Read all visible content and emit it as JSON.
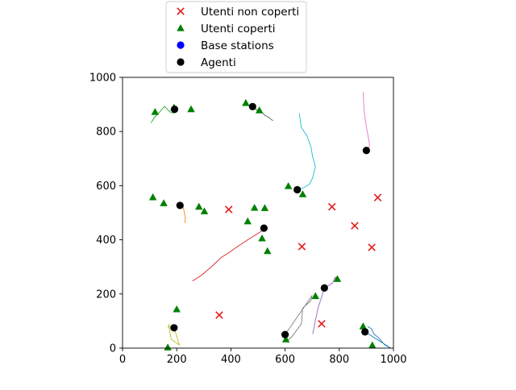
{
  "chart_data": {
    "type": "scatter",
    "xlim": [
      0,
      1000
    ],
    "ylim": [
      0,
      1000
    ],
    "x_ticks": [
      0,
      200,
      400,
      600,
      800,
      1000
    ],
    "y_ticks": [
      0,
      200,
      400,
      600,
      800,
      1000
    ],
    "legend_position": "top-center (above the axes)",
    "legend": [
      {
        "label": "Utenti non coperti",
        "marker": "x",
        "color": "#e41a1c"
      },
      {
        "label": "Utenti coperti",
        "marker": "triangle",
        "color": "#008000"
      },
      {
        "label": "Base stations",
        "marker": "circle",
        "color": "#0000ff"
      },
      {
        "label": "Agenti",
        "marker": "circle",
        "color": "#000000"
      }
    ],
    "series": [
      {
        "name": "Utenti non coperti",
        "points": [
          [
            392,
            512
          ],
          [
            773,
            522
          ],
          [
            942,
            556
          ],
          [
            857,
            452
          ],
          [
            920,
            372
          ],
          [
            662,
            375
          ],
          [
            357,
            122
          ],
          [
            735,
            90
          ]
        ]
      },
      {
        "name": "Utenti coperti",
        "points": [
          [
            120,
            872
          ],
          [
            190,
            888
          ],
          [
            253,
            882
          ],
          [
            455,
            905
          ],
          [
            505,
            878
          ],
          [
            112,
            557
          ],
          [
            152,
            535
          ],
          [
            282,
            522
          ],
          [
            302,
            505
          ],
          [
            462,
            468
          ],
          [
            487,
            518
          ],
          [
            525,
            517
          ],
          [
            515,
            405
          ],
          [
            535,
            358
          ],
          [
            612,
            598
          ],
          [
            665,
            568
          ],
          [
            712,
            192
          ],
          [
            793,
            255
          ],
          [
            200,
            143
          ],
          [
            167,
            2
          ],
          [
            603,
            32
          ],
          [
            888,
            80
          ],
          [
            922,
            10
          ]
        ]
      },
      {
        "name": "Agenti",
        "points": [
          [
            192,
            882
          ],
          [
            480,
            892
          ],
          [
            212,
            527
          ],
          [
            522,
            443
          ],
          [
            645,
            585
          ],
          [
            900,
            730
          ],
          [
            745,
            222
          ],
          [
            190,
            75
          ],
          [
            600,
            50
          ],
          [
            895,
            60
          ]
        ]
      }
    ],
    "trajectories": [
      {
        "color": "#2ca02c",
        "points": [
          [
            105,
            832
          ],
          [
            118,
            852
          ],
          [
            135,
            870
          ],
          [
            155,
            893
          ],
          [
            165,
            882
          ],
          [
            175,
            872
          ],
          [
            188,
            868
          ],
          [
            192,
            882
          ]
        ]
      },
      {
        "color": "#555555",
        "points": [
          [
            555,
            840
          ],
          [
            540,
            852
          ],
          [
            525,
            860
          ],
          [
            510,
            876
          ],
          [
            495,
            880
          ],
          [
            480,
            892
          ]
        ]
      },
      {
        "color": "#ff7f0e",
        "points": [
          [
            230,
            462
          ],
          [
            232,
            482
          ],
          [
            228,
            502
          ],
          [
            224,
            520
          ],
          [
            212,
            527
          ]
        ]
      },
      {
        "color": "#d62728",
        "points": [
          [
            258,
            248
          ],
          [
            290,
            268
          ],
          [
            330,
            302
          ],
          [
            365,
            335
          ],
          [
            392,
            352
          ],
          [
            420,
            372
          ],
          [
            462,
            400
          ],
          [
            510,
            430
          ],
          [
            522,
            443
          ]
        ]
      },
      {
        "color": "#17becf",
        "points": [
          [
            652,
            868
          ],
          [
            660,
            815
          ],
          [
            680,
            785
          ],
          [
            695,
            745
          ],
          [
            702,
            705
          ],
          [
            712,
            670
          ],
          [
            702,
            630
          ],
          [
            690,
            605
          ],
          [
            668,
            592
          ],
          [
            645,
            585
          ]
        ]
      },
      {
        "color": "#e377c2",
        "points": [
          [
            888,
            945
          ],
          [
            892,
            875
          ],
          [
            898,
            830
          ],
          [
            905,
            790
          ],
          [
            912,
            752
          ],
          [
            908,
            735
          ],
          [
            900,
            730
          ]
        ]
      },
      {
        "color": "#9467bd",
        "points": [
          [
            702,
            52
          ],
          [
            712,
            102
          ],
          [
            723,
            152
          ],
          [
            734,
            185
          ],
          [
            745,
            222
          ],
          [
            775,
            240
          ],
          [
            785,
            262
          ],
          [
            792,
            244
          ]
        ]
      },
      {
        "color": "#bcbd22",
        "points": [
          [
            168,
            72
          ],
          [
            172,
            88
          ],
          [
            175,
            55
          ],
          [
            180,
            32
          ],
          [
            195,
            22
          ],
          [
            210,
            12
          ],
          [
            190,
            75
          ]
        ]
      },
      {
        "color": "#7f7f7f",
        "points": [
          [
            605,
            25
          ],
          [
            625,
            42
          ],
          [
            660,
            90
          ],
          [
            665,
            148
          ],
          [
            695,
            175
          ],
          [
            700,
            195
          ],
          [
            600,
            50
          ]
        ]
      },
      {
        "color": "#1f77b4",
        "points": [
          [
            905,
            80
          ],
          [
            918,
            72
          ],
          [
            928,
            52
          ],
          [
            945,
            38
          ],
          [
            968,
            12
          ],
          [
            990,
            0
          ],
          [
            895,
            60
          ]
        ]
      }
    ]
  }
}
